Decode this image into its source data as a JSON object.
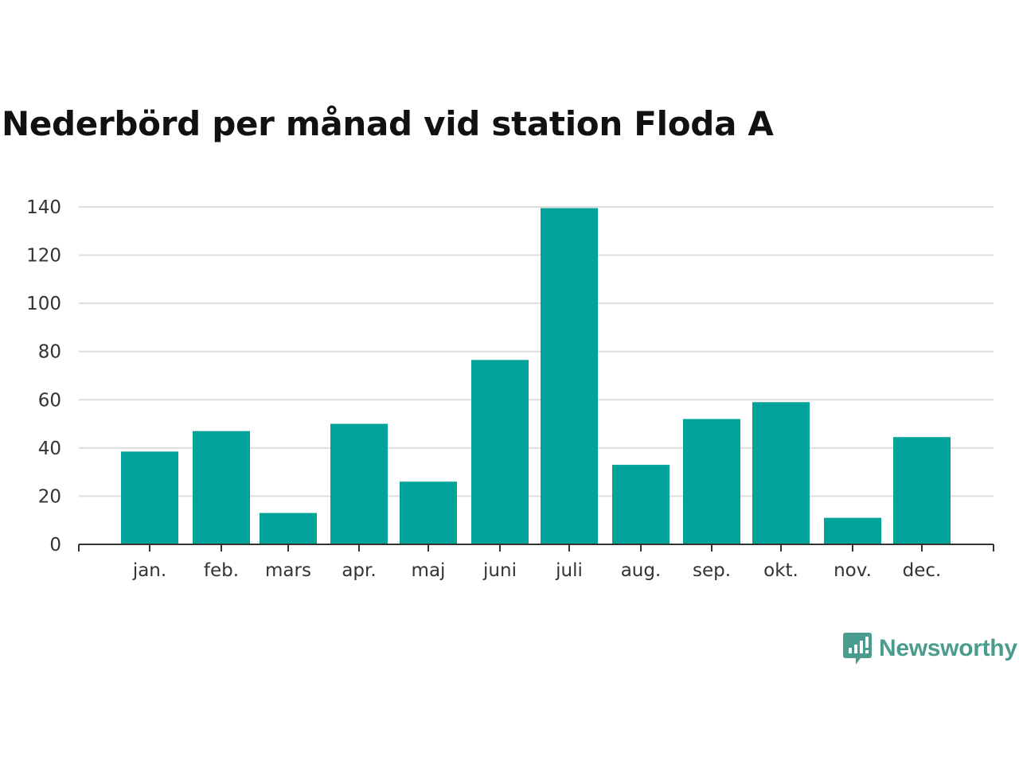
{
  "chart_data": {
    "type": "bar",
    "title": "Nederbörd per månad vid station Floda A",
    "xlabel": "",
    "ylabel": "",
    "categories": [
      "jan.",
      "feb.",
      "mars",
      "apr.",
      "maj",
      "juni",
      "juli",
      "aug.",
      "sep.",
      "okt.",
      "nov.",
      "dec."
    ],
    "values": [
      38.5,
      47,
      13,
      50,
      26,
      76.5,
      139.5,
      33,
      52,
      59,
      11,
      44.5
    ],
    "ylim": [
      0,
      140
    ],
    "yticks": [
      "0",
      "20",
      "40",
      "60",
      "80",
      "100",
      "120",
      "140"
    ],
    "ytick_values": [
      0,
      20,
      40,
      60,
      80,
      100,
      120,
      140
    ],
    "grid": true,
    "bar_color": "#00a29a",
    "grid_color": "#dddddd",
    "axis_color": "#333333"
  },
  "brand": {
    "name": "Newsworthy",
    "icon": "newsworthy-logo-icon",
    "color": "#4a9d8e"
  }
}
